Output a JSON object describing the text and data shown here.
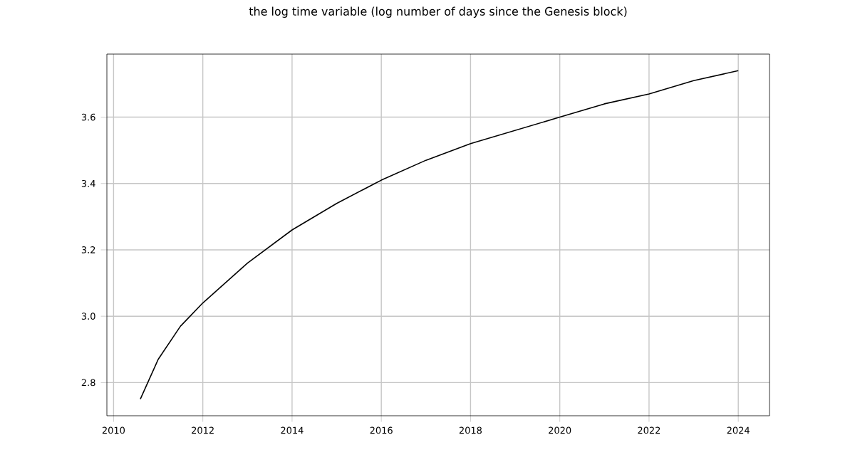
{
  "chart_data": {
    "type": "line",
    "title": "the log time variable (log number of days since the Genesis block)",
    "x": [
      2010.6,
      2011,
      2011.5,
      2012,
      2012.5,
      2013,
      2014,
      2015,
      2016,
      2017,
      2018,
      2019,
      2020,
      2021,
      2022,
      2023,
      2024
    ],
    "series": [
      {
        "color": "#000000",
        "values": [
          2.75,
          2.87,
          2.97,
          3.04,
          3.1,
          3.16,
          3.26,
          3.34,
          3.41,
          3.47,
          3.52,
          3.56,
          3.6,
          3.64,
          3.67,
          3.71,
          3.74
        ]
      }
    ],
    "xlim": [
      2009.85,
      2024.7
    ],
    "ylim": [
      2.7,
      3.79
    ],
    "xticks": [
      2010,
      2012,
      2014,
      2016,
      2018,
      2020,
      2022,
      2024
    ],
    "yticks": [
      2.8,
      {
        "value": 3.0,
        "label": "3.0"
      },
      3.2,
      3.4,
      3.6
    ],
    "grid": true,
    "marker": "none",
    "line_style": "solid"
  }
}
